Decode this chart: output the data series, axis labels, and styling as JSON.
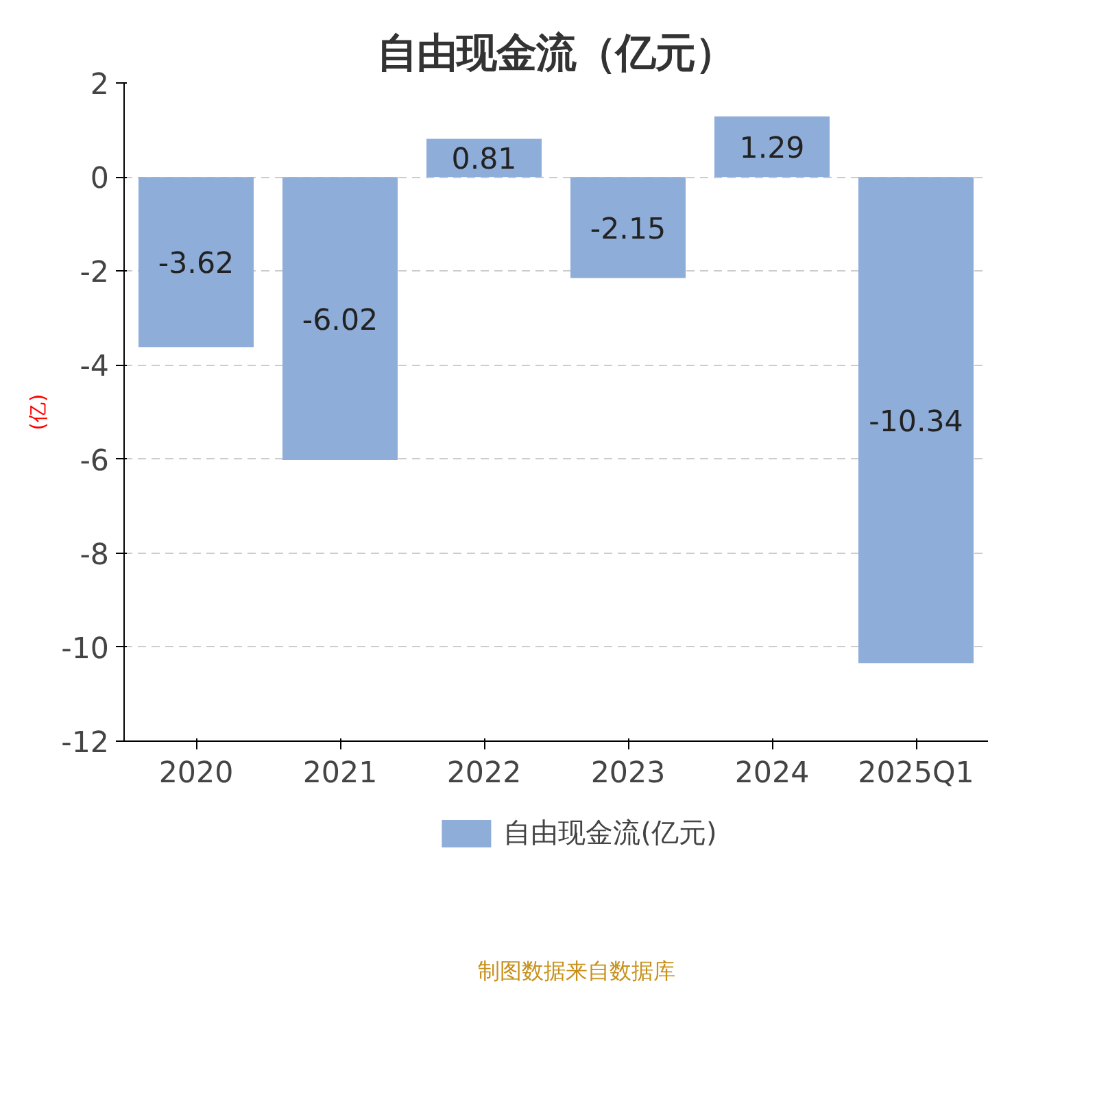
{
  "chart_data": {
    "type": "bar",
    "title": "自由现金流（亿元）",
    "ylabel": "(亿)",
    "categories": [
      "2020",
      "2021",
      "2022",
      "2023",
      "2024",
      "2025Q1"
    ],
    "series": [
      {
        "name": "自由现金流(亿元)",
        "color": "#8eadd9",
        "values": [
          -3.62,
          -6.02,
          0.81,
          -2.15,
          1.29,
          -10.34
        ]
      }
    ],
    "ylim": [
      -12,
      2
    ],
    "yticks": [
      -12,
      -10,
      -8,
      -6,
      -4,
      -2,
      0,
      2
    ],
    "grid": "y",
    "legend": "bottom",
    "data_labels": true,
    "annotations": [
      "制图数据来自数据库"
    ]
  }
}
